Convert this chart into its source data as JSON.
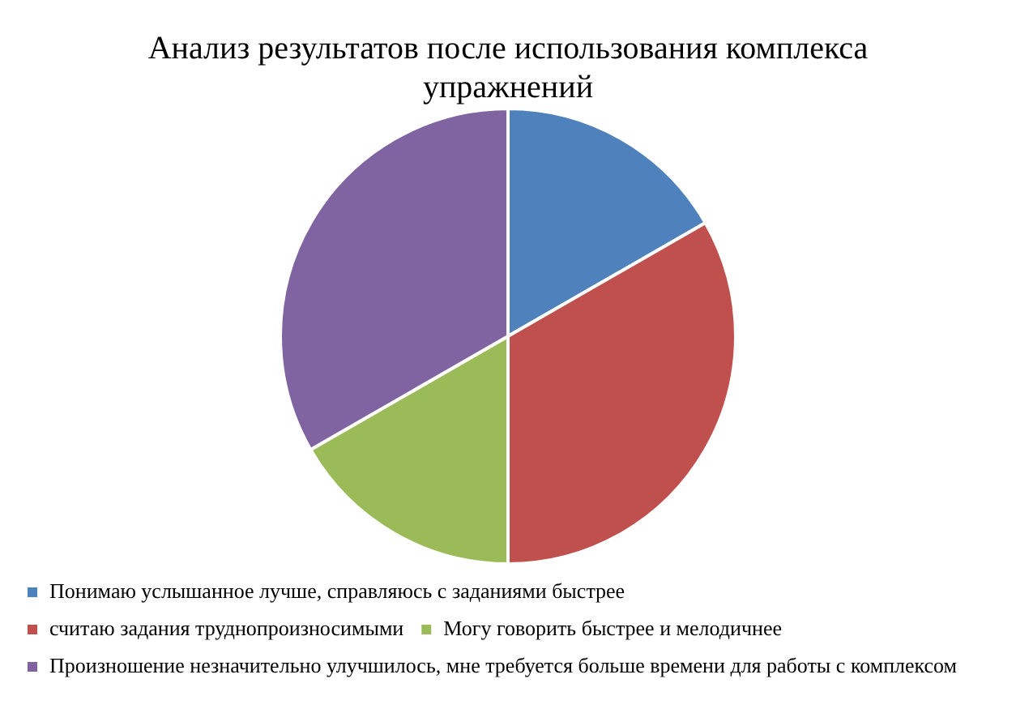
{
  "chart_data": {
    "type": "pie",
    "title": "Анализ результатов после использования комплекса упражнений",
    "categories": [
      "Понимаю услышанное лучше, справляюсь с заданиями быстрее",
      "считаю задания труднопроизносимыми",
      "Могу говорить быстрее и мелодичнее",
      "Произношение незначительно улучшилось, мне требуется больше времени для работы с комплексом"
    ],
    "values": [
      16.7,
      33.3,
      16.7,
      33.3
    ],
    "colors": [
      "#4f81bd",
      "#c0504d",
      "#9bbb59",
      "#8064a2"
    ],
    "legend": "bottom"
  }
}
